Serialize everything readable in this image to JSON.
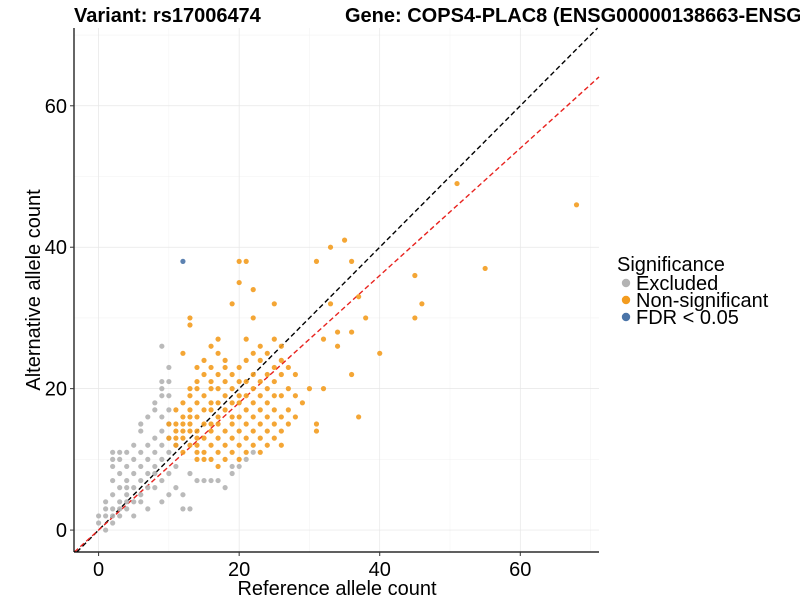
{
  "chart_data": {
    "type": "scatter",
    "title_left": "Variant: rs17006474",
    "title_right": "Gene: COPS4-PLAC8 (ENSG00000138663-ENSG",
    "xlabel": "Reference allele count",
    "ylabel": "Alternative allele count",
    "xlim": [
      -3.5,
      71.2
    ],
    "ylim": [
      -3.1,
      71.0
    ],
    "x_ticks": [
      0,
      20,
      40,
      60
    ],
    "y_ticks": [
      0,
      20,
      40,
      60
    ],
    "x_tick_labels": [
      "0",
      "20",
      "40",
      "60"
    ],
    "y_tick_labels": [
      "0",
      "20",
      "40",
      "60"
    ],
    "grid": true,
    "legend": {
      "title": "Significance",
      "position": "right",
      "entries": [
        {
          "label": "Excluded",
          "color": "#b3b3b3"
        },
        {
          "label": "Non-significant",
          "color": "#f39c1f"
        },
        {
          "label": "FDR < 0.05",
          "color": "#4a74a8"
        }
      ]
    },
    "reference_lines": [
      {
        "slope": 1.0,
        "intercept": 0,
        "color": "#000000",
        "style": "dashed"
      },
      {
        "slope": 0.9,
        "intercept": 0,
        "color": "#e8231f",
        "style": "dashed"
      }
    ],
    "series": [
      {
        "name": "Excluded",
        "color": "#b3b3b3",
        "points": [
          [
            0,
            1
          ],
          [
            0,
            2
          ],
          [
            1,
            0
          ],
          [
            1,
            2
          ],
          [
            1,
            3
          ],
          [
            1,
            4
          ],
          [
            2,
            1
          ],
          [
            2,
            2
          ],
          [
            2,
            3
          ],
          [
            2,
            5
          ],
          [
            2,
            7
          ],
          [
            2,
            9
          ],
          [
            2,
            10
          ],
          [
            2,
            11
          ],
          [
            3,
            2
          ],
          [
            3,
            3
          ],
          [
            3,
            4
          ],
          [
            3,
            6
          ],
          [
            3,
            8
          ],
          [
            3,
            10
          ],
          [
            3,
            11
          ],
          [
            4,
            3
          ],
          [
            4,
            4
          ],
          [
            4,
            5
          ],
          [
            4,
            6
          ],
          [
            4,
            7
          ],
          [
            4,
            9
          ],
          [
            4,
            11
          ],
          [
            5,
            2
          ],
          [
            5,
            4
          ],
          [
            5,
            6
          ],
          [
            5,
            8
          ],
          [
            5,
            10
          ],
          [
            5,
            12
          ],
          [
            6,
            4
          ],
          [
            6,
            5
          ],
          [
            6,
            7
          ],
          [
            6,
            9
          ],
          [
            6,
            11
          ],
          [
            6,
            14
          ],
          [
            6,
            15
          ],
          [
            7,
            3
          ],
          [
            7,
            6
          ],
          [
            7,
            8
          ],
          [
            7,
            10
          ],
          [
            7,
            12
          ],
          [
            7,
            16
          ],
          [
            8,
            6
          ],
          [
            8,
            8
          ],
          [
            8,
            9
          ],
          [
            8,
            11
          ],
          [
            8,
            13
          ],
          [
            8,
            17
          ],
          [
            8,
            18
          ],
          [
            9,
            4
          ],
          [
            9,
            7
          ],
          [
            9,
            10
          ],
          [
            9,
            12
          ],
          [
            9,
            14
          ],
          [
            9,
            16
          ],
          [
            9,
            19
          ],
          [
            9,
            20
          ],
          [
            9,
            21
          ],
          [
            9,
            26
          ],
          [
            10,
            5
          ],
          [
            10,
            8
          ],
          [
            10,
            11
          ],
          [
            10,
            13
          ],
          [
            10,
            15
          ],
          [
            10,
            17
          ],
          [
            10,
            19
          ],
          [
            10,
            21
          ],
          [
            10,
            23
          ],
          [
            11,
            6
          ],
          [
            11,
            9
          ],
          [
            11,
            12
          ],
          [
            12,
            3
          ],
          [
            12,
            5
          ],
          [
            13,
            3
          ],
          [
            13,
            8
          ],
          [
            14,
            7
          ],
          [
            15,
            7
          ],
          [
            16,
            7
          ],
          [
            17,
            7
          ],
          [
            18,
            6
          ],
          [
            19,
            8
          ],
          [
            19,
            9
          ],
          [
            20,
            9
          ],
          [
            21,
            10
          ],
          [
            22,
            11
          ]
        ]
      },
      {
        "name": "Non-significant",
        "color": "#f39c1f",
        "points": [
          [
            10,
            13
          ],
          [
            10,
            15
          ],
          [
            11,
            12
          ],
          [
            11,
            13
          ],
          [
            11,
            14
          ],
          [
            11,
            15
          ],
          [
            11,
            17
          ],
          [
            12,
            11
          ],
          [
            12,
            13
          ],
          [
            12,
            14
          ],
          [
            12,
            15
          ],
          [
            12,
            16
          ],
          [
            12,
            18
          ],
          [
            12,
            25
          ],
          [
            13,
            12
          ],
          [
            13,
            14
          ],
          [
            13,
            15
          ],
          [
            13,
            16
          ],
          [
            13,
            17
          ],
          [
            13,
            19
          ],
          [
            13,
            20
          ],
          [
            13,
            29
          ],
          [
            13,
            30
          ],
          [
            14,
            10
          ],
          [
            14,
            11
          ],
          [
            14,
            12
          ],
          [
            14,
            13
          ],
          [
            14,
            14
          ],
          [
            14,
            16
          ],
          [
            14,
            18
          ],
          [
            14,
            20
          ],
          [
            14,
            21
          ],
          [
            14,
            23
          ],
          [
            15,
            10
          ],
          [
            15,
            11
          ],
          [
            15,
            13
          ],
          [
            15,
            15
          ],
          [
            15,
            17
          ],
          [
            15,
            19
          ],
          [
            15,
            22
          ],
          [
            15,
            24
          ],
          [
            16,
            10
          ],
          [
            16,
            12
          ],
          [
            16,
            14
          ],
          [
            16,
            15
          ],
          [
            16,
            17
          ],
          [
            16,
            18
          ],
          [
            16,
            20
          ],
          [
            16,
            21
          ],
          [
            16,
            23
          ],
          [
            16,
            26
          ],
          [
            17,
            9
          ],
          [
            17,
            11
          ],
          [
            17,
            13
          ],
          [
            17,
            15
          ],
          [
            17,
            16
          ],
          [
            17,
            18
          ],
          [
            17,
            20
          ],
          [
            17,
            22
          ],
          [
            17,
            25
          ],
          [
            17,
            27
          ],
          [
            18,
            10
          ],
          [
            18,
            12
          ],
          [
            18,
            14
          ],
          [
            18,
            17
          ],
          [
            18,
            19
          ],
          [
            18,
            21
          ],
          [
            18,
            23
          ],
          [
            18,
            24
          ],
          [
            19,
            11
          ],
          [
            19,
            13
          ],
          [
            19,
            15
          ],
          [
            19,
            16
          ],
          [
            19,
            18
          ],
          [
            19,
            20
          ],
          [
            19,
            22
          ],
          [
            19,
            32
          ],
          [
            20,
            10
          ],
          [
            20,
            12
          ],
          [
            20,
            14
          ],
          [
            20,
            16
          ],
          [
            20,
            18
          ],
          [
            20,
            19
          ],
          [
            20,
            21
          ],
          [
            20,
            23
          ],
          [
            20,
            35
          ],
          [
            20,
            38
          ],
          [
            21,
            11
          ],
          [
            21,
            13
          ],
          [
            21,
            15
          ],
          [
            21,
            17
          ],
          [
            21,
            19
          ],
          [
            21,
            21
          ],
          [
            21,
            24
          ],
          [
            21,
            27
          ],
          [
            21,
            38
          ],
          [
            22,
            12
          ],
          [
            22,
            14
          ],
          [
            22,
            16
          ],
          [
            22,
            18
          ],
          [
            22,
            20
          ],
          [
            22,
            22
          ],
          [
            22,
            25
          ],
          [
            22,
            30
          ],
          [
            22,
            34
          ],
          [
            23,
            11
          ],
          [
            23,
            13
          ],
          [
            23,
            15
          ],
          [
            23,
            17
          ],
          [
            23,
            19
          ],
          [
            23,
            21
          ],
          [
            23,
            24
          ],
          [
            23,
            26
          ],
          [
            24,
            12
          ],
          [
            24,
            14
          ],
          [
            24,
            16
          ],
          [
            24,
            18
          ],
          [
            24,
            20
          ],
          [
            24,
            22
          ],
          [
            24,
            25
          ],
          [
            25,
            13
          ],
          [
            25,
            15
          ],
          [
            25,
            17
          ],
          [
            25,
            19
          ],
          [
            25,
            21
          ],
          [
            25,
            23
          ],
          [
            25,
            27
          ],
          [
            25,
            32
          ],
          [
            26,
            12
          ],
          [
            26,
            14
          ],
          [
            26,
            16
          ],
          [
            26,
            19
          ],
          [
            26,
            22
          ],
          [
            26,
            24
          ],
          [
            26,
            26
          ],
          [
            27,
            15
          ],
          [
            27,
            17
          ],
          [
            27,
            20
          ],
          [
            27,
            23
          ],
          [
            28,
            16
          ],
          [
            28,
            19
          ],
          [
            28,
            22
          ],
          [
            29,
            18
          ],
          [
            30,
            20
          ],
          [
            31,
            14
          ],
          [
            31,
            15
          ],
          [
            31,
            38
          ],
          [
            32,
            20
          ],
          [
            32,
            27
          ],
          [
            33,
            32
          ],
          [
            33,
            40
          ],
          [
            34,
            26
          ],
          [
            34,
            28
          ],
          [
            35,
            41
          ],
          [
            36,
            22
          ],
          [
            36,
            28
          ],
          [
            36,
            38
          ],
          [
            37,
            16
          ],
          [
            37,
            33
          ],
          [
            38,
            30
          ],
          [
            40,
            25
          ],
          [
            45,
            30
          ],
          [
            45,
            36
          ],
          [
            46,
            32
          ],
          [
            51,
            49
          ],
          [
            55,
            37
          ],
          [
            68,
            46
          ]
        ]
      },
      {
        "name": "FDR < 0.05",
        "color": "#4a74a8",
        "points": [
          [
            12,
            38
          ]
        ]
      }
    ]
  }
}
